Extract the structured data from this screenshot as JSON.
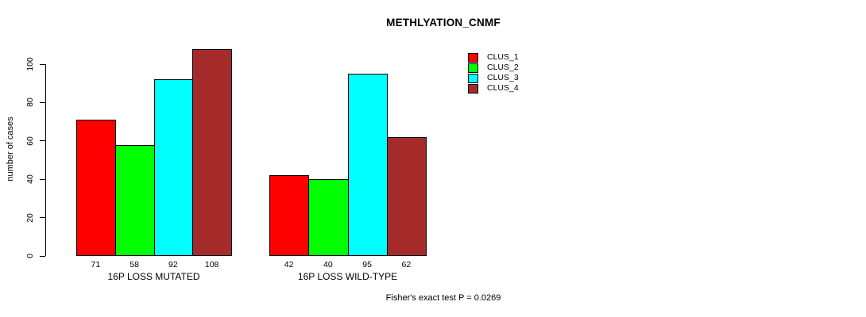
{
  "chart_data": {
    "type": "bar",
    "title": "METHLYATION_CNMF",
    "ylabel": "number of cases",
    "ylim": [
      0,
      100
    ],
    "yticks": [
      0,
      20,
      40,
      60,
      80,
      100
    ],
    "grid": false,
    "legend_position": "top-right-inside",
    "series": [
      "CLUS_1",
      "CLUS_2",
      "CLUS_3",
      "CLUS_4"
    ],
    "colors": [
      "#ff0000",
      "#00ff00",
      "#00ffff",
      "#a52a2a"
    ],
    "groups": [
      {
        "label": "16P LOSS MUTATED",
        "values": [
          71,
          58,
          92,
          108
        ]
      },
      {
        "label": "16P LOSS WILD-TYPE",
        "values": [
          42,
          40,
          95,
          62
        ]
      }
    ],
    "bar_value_labels": [
      [
        "71",
        "58",
        "92",
        "108"
      ],
      [
        "42",
        "40",
        "95",
        "62"
      ]
    ],
    "annotation": "Fisher's exact test P = 0.0269"
  }
}
